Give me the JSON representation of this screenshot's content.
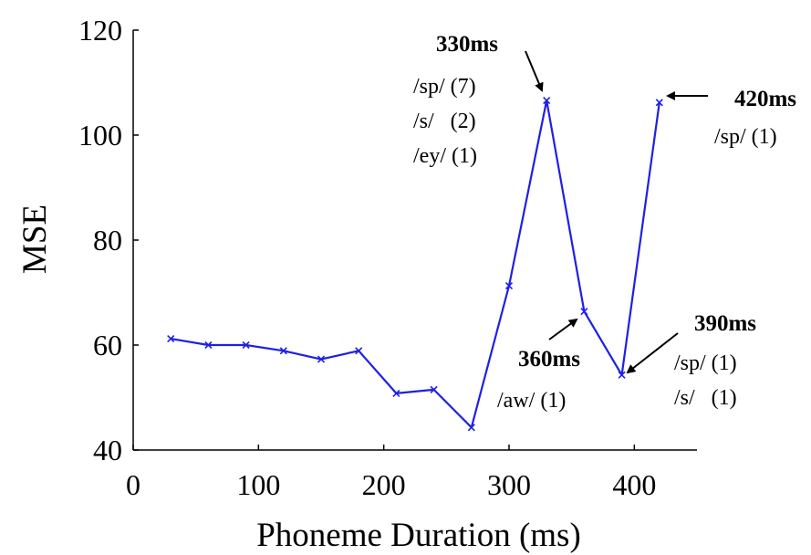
{
  "chart_data": {
    "type": "line",
    "title": "",
    "xlabel": "Phoneme Duration (ms)",
    "ylabel": "MSE",
    "xlim": [
      0,
      450
    ],
    "ylim": [
      40,
      120
    ],
    "xticks": [
      "0",
      "100",
      "200",
      "300",
      "400"
    ],
    "yticks": [
      "40",
      "60",
      "80",
      "100",
      "120"
    ],
    "grid": false,
    "legend": "none",
    "series": [
      {
        "color": "#1f1fe6",
        "marker": "x",
        "x": [
          30,
          60,
          90,
          120,
          150,
          180,
          210,
          240,
          270,
          300,
          330,
          360,
          390,
          420
        ],
        "y": [
          61.2,
          60.0,
          60.0,
          58.9,
          57.3,
          58.9,
          50.8,
          51.5,
          44.3,
          71.3,
          106.6,
          66.4,
          54.3,
          106.2
        ]
      }
    ],
    "annotations": [
      {
        "id": "a330",
        "title": "330ms",
        "lines": [
          "/sp/ (7)",
          "/s/   (2)",
          "/ey/ (1)"
        ],
        "point_x": 330,
        "point_y": 106.6
      },
      {
        "id": "a420",
        "title": "420ms",
        "lines": [
          "/sp/ (1)"
        ],
        "point_x": 420,
        "point_y": 106.2
      },
      {
        "id": "a360",
        "title": "360ms",
        "lines": [
          "/aw/ (1)"
        ],
        "point_x": 360,
        "point_y": 66.4
      },
      {
        "id": "a390",
        "title": "390ms",
        "lines": [
          "/sp/ (1)",
          "/s/   (1)"
        ],
        "point_x": 390,
        "point_y": 54.3
      }
    ]
  }
}
